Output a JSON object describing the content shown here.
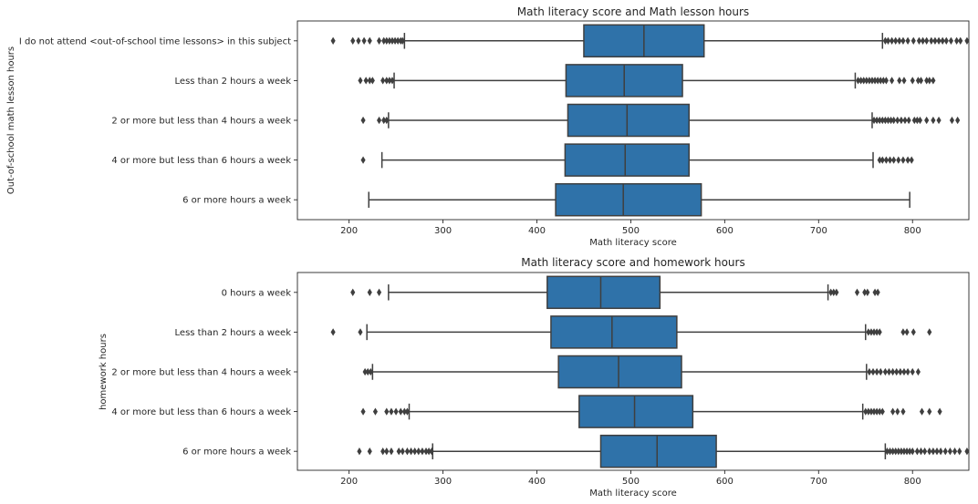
{
  "chart_data": [
    {
      "type": "box",
      "orientation": "horizontal",
      "title": "Math literacy score and Math lesson hours",
      "xlabel": "Math literacy score",
      "ylabel": "Out-of-school math lesson hours",
      "xlim": [
        145,
        860
      ],
      "xticks": [
        200,
        300,
        400,
        500,
        600,
        700,
        800
      ],
      "color": "#2f72a9",
      "line_color": "#3f3f3f",
      "categories": [
        "I do not attend <out-of-school time lessons> in this subject",
        "Less than 2 hours a week",
        "2 or more but less than 4 hours a week",
        "4 or more but less than 6 hours a week",
        "6 or more hours a week"
      ],
      "boxes": [
        {
          "whislo": 259,
          "q1": 450,
          "med": 514,
          "q3": 578,
          "whishi": 768,
          "fliers": [
            183,
            204,
            210,
            216,
            222,
            232,
            237,
            240,
            243,
            246,
            249,
            252,
            255,
            257,
            771,
            774,
            778,
            782,
            786,
            790,
            795,
            801,
            807,
            811,
            815,
            820,
            824,
            828,
            832,
            836,
            841,
            847,
            851,
            858
          ]
        },
        {
          "whislo": 248,
          "q1": 431,
          "med": 493,
          "q3": 555,
          "whishi": 739,
          "fliers": [
            212,
            218,
            222,
            225,
            236,
            240,
            243,
            246,
            742,
            745,
            748,
            751,
            754,
            757,
            760,
            763,
            766,
            769,
            772,
            778,
            786,
            791,
            800,
            806,
            809,
            815,
            818,
            822
          ]
        },
        {
          "whislo": 242,
          "q1": 433,
          "med": 496,
          "q3": 562,
          "whishi": 757,
          "fliers": [
            215,
            232,
            237,
            240,
            759,
            762,
            765,
            768,
            771,
            774,
            777,
            780,
            784,
            788,
            792,
            796,
            802,
            805,
            808,
            815,
            822,
            828,
            842,
            848
          ]
        },
        {
          "whislo": 235,
          "q1": 430,
          "med": 494,
          "q3": 562,
          "whishi": 758,
          "fliers": [
            215,
            765,
            768,
            772,
            776,
            780,
            785,
            790,
            795,
            799
          ]
        },
        {
          "whislo": 221,
          "q1": 420,
          "med": 492,
          "q3": 575,
          "whishi": 797,
          "fliers": []
        }
      ]
    },
    {
      "type": "box",
      "orientation": "horizontal",
      "title": "Math literacy score and homework hours",
      "xlabel": "Math literacy score",
      "ylabel": "homework hours",
      "xlim": [
        145,
        860
      ],
      "xticks": [
        200,
        300,
        400,
        500,
        600,
        700,
        800
      ],
      "color": "#2f72a9",
      "line_color": "#3f3f3f",
      "categories": [
        "0 hours a week",
        "Less than 2 hours a week",
        "2 or more but less than 4 hours a week",
        "4 or more but less than 6 hours a week",
        "6 or more hours a week"
      ],
      "boxes": [
        {
          "whislo": 242,
          "q1": 411,
          "med": 468,
          "q3": 531,
          "whishi": 710,
          "fliers": [
            204,
            222,
            232,
            713,
            716,
            719,
            741,
            749,
            752,
            760,
            763
          ]
        },
        {
          "whislo": 219,
          "q1": 415,
          "med": 480,
          "q3": 549,
          "whishi": 750,
          "fliers": [
            183,
            212,
            753,
            756,
            759,
            762,
            765,
            790,
            794,
            801,
            818
          ]
        },
        {
          "whislo": 225,
          "q1": 423,
          "med": 487,
          "q3": 554,
          "whishi": 751,
          "fliers": [
            217,
            220,
            223,
            754,
            758,
            762,
            766,
            771,
            775,
            779,
            783,
            787,
            791,
            795,
            800,
            806
          ]
        },
        {
          "whislo": 264,
          "q1": 445,
          "med": 504,
          "q3": 566,
          "whishi": 747,
          "fliers": [
            215,
            228,
            240,
            245,
            250,
            255,
            259,
            262,
            750,
            753,
            756,
            759,
            762,
            765,
            768,
            779,
            784,
            790,
            810,
            818,
            829
          ]
        },
        {
          "whislo": 289,
          "q1": 468,
          "med": 528,
          "q3": 591,
          "whishi": 771,
          "fliers": [
            211,
            222,
            236,
            240,
            245,
            253,
            257,
            262,
            266,
            270,
            274,
            278,
            282,
            285,
            288,
            773,
            776,
            779,
            782,
            785,
            788,
            791,
            794,
            797,
            800,
            805,
            809,
            813,
            818,
            822,
            826,
            830,
            835,
            840,
            845,
            850,
            858
          ]
        }
      ]
    }
  ]
}
